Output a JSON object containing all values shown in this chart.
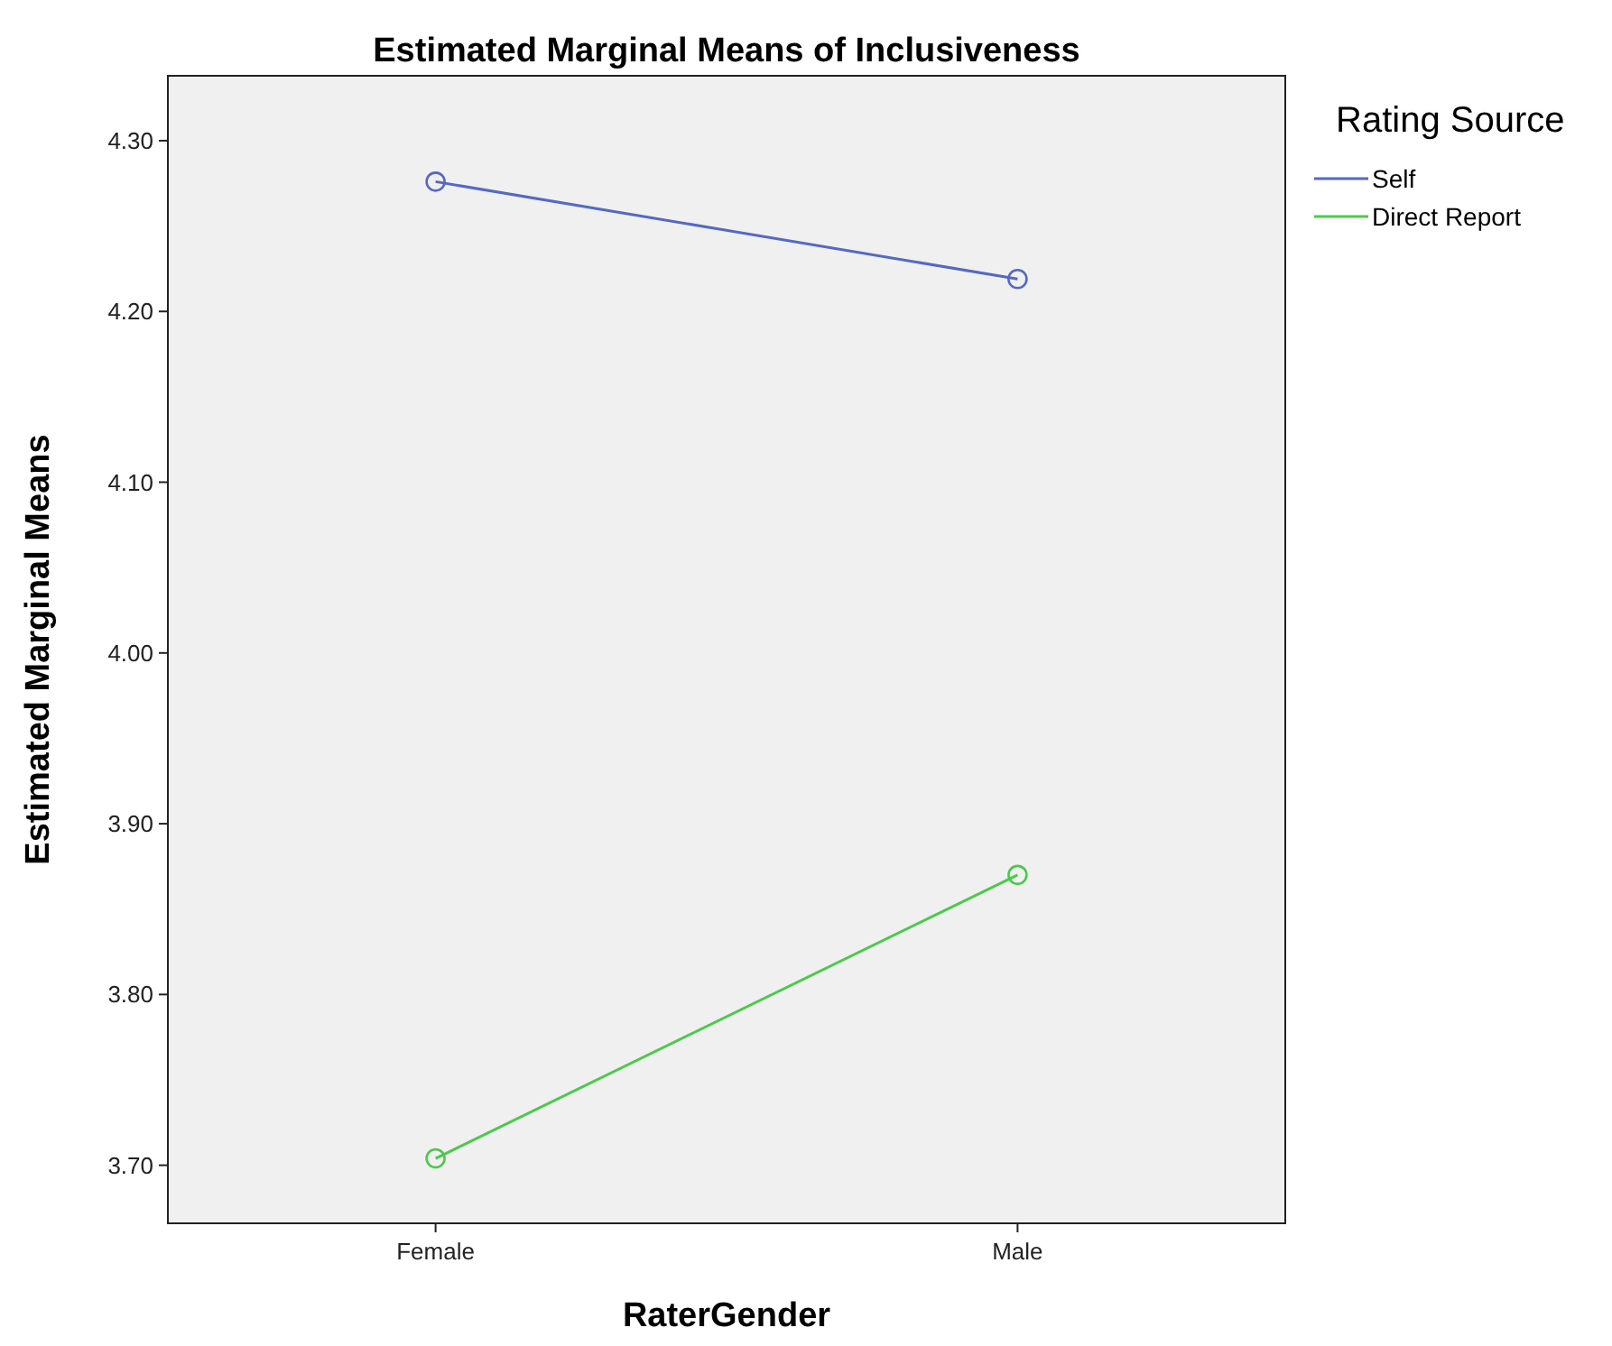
{
  "chart_data": {
    "type": "line",
    "title": "Estimated Marginal Means of Inclusiveness",
    "xlabel": "RaterGender",
    "ylabel": "Estimated Marginal Means",
    "legend_title": "Rating Source",
    "categories": [
      "Female",
      "Male"
    ],
    "series": [
      {
        "name": "Self",
        "color": "#5468c4",
        "values": [
          4.276,
          4.219
        ]
      },
      {
        "name": "Direct Report",
        "color": "#4cc94c",
        "values": [
          3.704,
          3.87
        ]
      }
    ],
    "ylim": [
      3.666,
      4.338
    ],
    "yticks": [
      {
        "value": 3.7,
        "label": "3.70"
      },
      {
        "value": 3.8,
        "label": "3.80"
      },
      {
        "value": 3.9,
        "label": "3.90"
      },
      {
        "value": 4.0,
        "label": "4.00"
      },
      {
        "value": 4.1,
        "label": "4.10"
      },
      {
        "value": 4.2,
        "label": "4.20"
      },
      {
        "value": 4.3,
        "label": "4.30"
      }
    ],
    "grid": false,
    "legend": "top right",
    "marker": "circle",
    "line_style": "solid"
  }
}
